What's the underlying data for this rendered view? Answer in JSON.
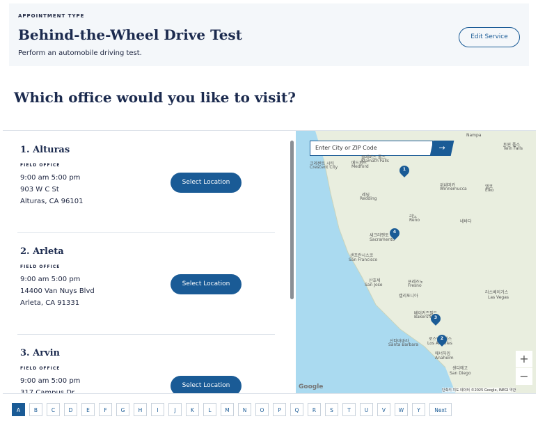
{
  "header": {
    "eyebrow": "APPOINTMENT TYPE",
    "title": "Behind-the-Wheel Drive Test",
    "subtitle": "Perform an automobile driving test.",
    "button": "Edit Service"
  },
  "question": "Which office would you like to visit?",
  "locations": [
    {
      "name": "1. Alturas",
      "type": "FIELD OFFICE",
      "hours": "9:00 am 5:00 pm",
      "address": "903 W C St",
      "city": "Alturas, CA 96101",
      "button": "Select Location"
    },
    {
      "name": "2. Arleta",
      "type": "FIELD OFFICE",
      "hours": "9:00 am 5:00 pm",
      "address": "14400 Van Nuys Blvd",
      "city": "Arleta, CA 91331",
      "button": "Select Location"
    },
    {
      "name": "3. Arvin",
      "type": "FIELD OFFICE",
      "hours": "9:00 am 5:00 pm",
      "address": "317 Campus Dr",
      "button": "Select Location"
    }
  ],
  "map": {
    "search_placeholder": "Enter City or ZIP Code",
    "labels": [
      "Nampa",
      "트윈 폴스",
      "Twin Falls",
      "크레센트 시티",
      "Crescent City",
      "클래머스 폴스",
      "Klamath Falls",
      "메드퍼드",
      "Medford",
      "위네머카",
      "Winnemucca",
      "엘코",
      "Elko",
      "레딩",
      "Redding",
      "리노",
      "Reno",
      "네바다",
      "새크라멘토",
      "Sacramento",
      "샌프란시스코",
      "San Francisco",
      "산호세",
      "San Jose",
      "프레즈노",
      "Fresno",
      "캘리포니아",
      "라스베이거스",
      "Las Vegas",
      "베이커즈필드",
      "Bakersfield",
      "산타바바라",
      "Santa Barbara",
      "로스앤젤레스",
      "Los Angeles",
      "애너하임",
      "Anaheim",
      "샌디에고",
      "San Diego"
    ],
    "pins": [
      "1",
      "4",
      "3",
      "2"
    ],
    "logo": "Google",
    "zoom_in": "+",
    "zoom_out": "−",
    "attribution": "단축키  지도 데이터 ©2025 Google, INEGI  약관"
  },
  "pagination": {
    "letters": [
      "A",
      "B",
      "C",
      "D",
      "E",
      "F",
      "G",
      "H",
      "I",
      "J",
      "K",
      "L",
      "M",
      "N",
      "O",
      "P",
      "Q",
      "R",
      "S",
      "T",
      "U",
      "V",
      "W",
      "Y"
    ],
    "next": "Next"
  }
}
